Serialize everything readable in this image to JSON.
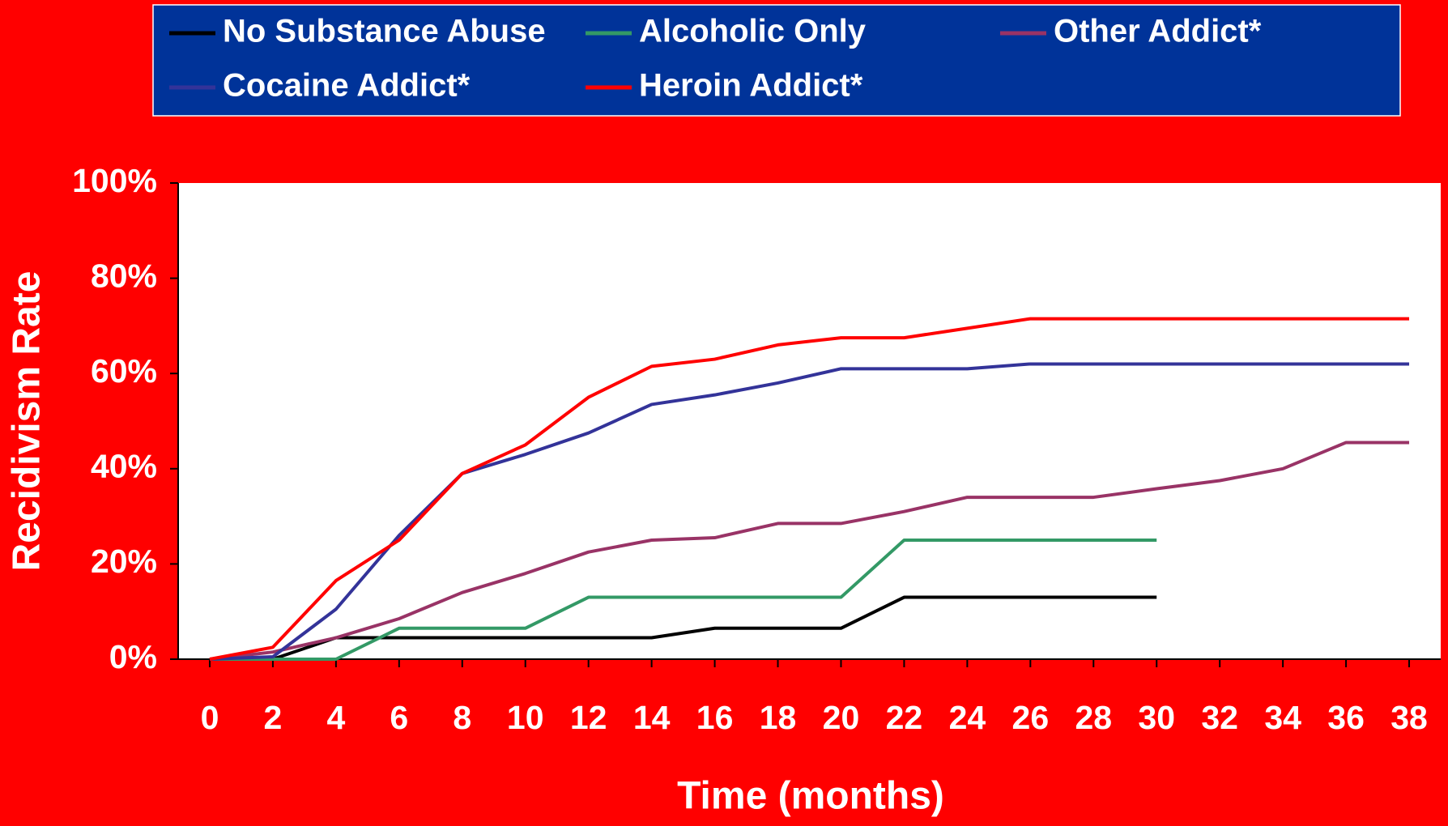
{
  "chart_data": {
    "type": "line",
    "x": [
      0,
      2,
      4,
      6,
      8,
      10,
      12,
      14,
      16,
      18,
      20,
      22,
      24,
      26,
      28,
      30,
      32,
      34,
      36,
      38
    ],
    "xlim": [
      -1,
      39
    ],
    "xticks": [
      0,
      2,
      4,
      6,
      8,
      10,
      12,
      14,
      16,
      18,
      20,
      22,
      24,
      26,
      28,
      30,
      32,
      34,
      36,
      38
    ],
    "ylim": [
      0,
      100
    ],
    "yticks": [
      {
        "value": 0,
        "label": "0%"
      },
      {
        "value": 20,
        "label": "20%"
      },
      {
        "value": 40,
        "label": "40%"
      },
      {
        "value": 60,
        "label": "60%"
      },
      {
        "value": 80,
        "label": "80%"
      },
      {
        "value": 100,
        "label": "100%"
      }
    ],
    "xlabel": "Time (months)",
    "ylabel": "Recidivism Rate",
    "series": [
      {
        "name": "No Substance Abuse",
        "color": "#000000",
        "values": [
          0,
          0,
          4.5,
          4.5,
          4.5,
          4.5,
          4.5,
          4.5,
          6.5,
          6.5,
          6.5,
          13,
          13,
          13,
          13,
          13,
          null,
          null,
          null,
          null
        ]
      },
      {
        "name": "Alcoholic Only",
        "color": "#339966",
        "values": [
          0,
          0,
          0,
          6.5,
          6.5,
          6.5,
          13,
          13,
          13,
          13,
          13,
          25,
          25,
          25,
          25,
          25,
          null,
          null,
          null,
          null
        ]
      },
      {
        "name": "Other Addict*",
        "color": "#993366",
        "values": [
          0,
          1.5,
          4.5,
          8.5,
          14,
          18,
          22.5,
          25,
          25.5,
          28.5,
          28.5,
          31,
          34,
          34,
          34,
          35.8,
          37.5,
          40,
          45.5,
          45.5
        ]
      },
      {
        "name": "Cocaine Addict*",
        "color": "#333399",
        "values": [
          0,
          0.5,
          10.5,
          26,
          39,
          43,
          47.5,
          53.5,
          55.5,
          58,
          61,
          61,
          61,
          62,
          62,
          62,
          62,
          62,
          62,
          62
        ]
      },
      {
        "name": "Heroin Addict*",
        "color": "#ff0000",
        "values": [
          0,
          2.5,
          16.5,
          25,
          39,
          45,
          55,
          61.5,
          63,
          66,
          67.5,
          67.5,
          69.5,
          71.5,
          71.5,
          71.5,
          71.5,
          71.5,
          71.5,
          71.5
        ]
      }
    ]
  }
}
